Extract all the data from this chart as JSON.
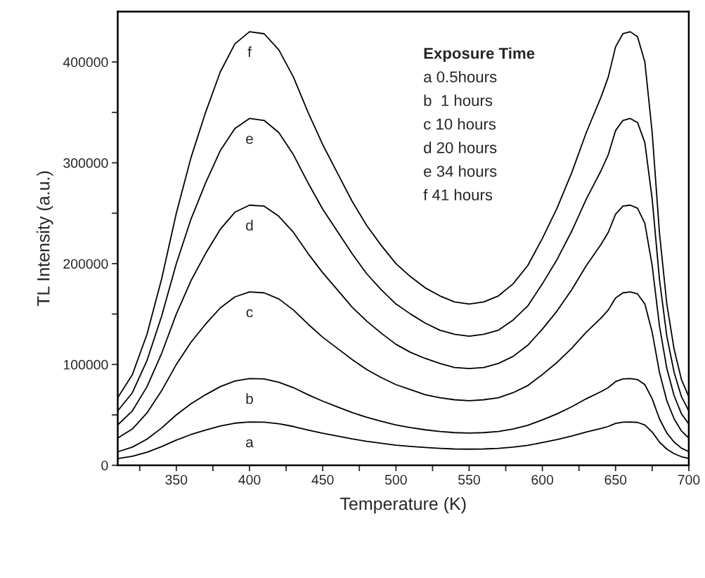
{
  "chart_data": {
    "type": "line",
    "xlabel": "Temperature (K)",
    "ylabel": "TL Intensity (a.u.)",
    "x": [
      310,
      320,
      330,
      340,
      350,
      360,
      370,
      380,
      390,
      400,
      410,
      420,
      430,
      440,
      450,
      460,
      470,
      480,
      490,
      500,
      510,
      520,
      530,
      540,
      550,
      560,
      570,
      580,
      590,
      600,
      610,
      620,
      630,
      640,
      645,
      650,
      655,
      660,
      665,
      670,
      675,
      680,
      685,
      690,
      695,
      700
    ],
    "series": [
      {
        "name": "a",
        "color": "#000000",
        "values": [
          6700,
          9000,
          13000,
          18500,
          25000,
          30500,
          35000,
          39000,
          41800,
          43000,
          42800,
          41200,
          38500,
          35000,
          31800,
          29000,
          26200,
          23800,
          21800,
          20000,
          18700,
          17600,
          16800,
          16200,
          16000,
          16200,
          16800,
          18000,
          19800,
          22500,
          25500,
          29000,
          33000,
          36500,
          38500,
          41500,
          42800,
          43000,
          42500,
          40000,
          33000,
          23000,
          16000,
          11500,
          8500,
          6800
        ]
      },
      {
        "name": "b",
        "color": "#000000",
        "values": [
          13400,
          18000,
          26000,
          37000,
          50000,
          61000,
          70000,
          78000,
          83600,
          86000,
          85600,
          82400,
          77000,
          70000,
          63600,
          58000,
          52400,
          47600,
          43600,
          40000,
          37400,
          35200,
          33600,
          32400,
          32000,
          32400,
          33600,
          36000,
          39600,
          45000,
          51000,
          58000,
          66000,
          73000,
          77000,
          83000,
          85600,
          86000,
          85000,
          80000,
          66000,
          46000,
          32000,
          23000,
          17000,
          13600
        ]
      },
      {
        "name": "c",
        "color": "#000000",
        "values": [
          27000,
          36000,
          52000,
          74000,
          100000,
          122000,
          140000,
          156000,
          167000,
          172000,
          171000,
          165000,
          154000,
          140000,
          127000,
          116000,
          105000,
          95000,
          87000,
          80000,
          75000,
          70000,
          67000,
          65000,
          64000,
          65000,
          67000,
          72000,
          79000,
          90000,
          102000,
          116000,
          132000,
          146000,
          154000,
          166000,
          171000,
          172000,
          170000,
          160000,
          132000,
          92000,
          64000,
          46000,
          34000,
          27000
        ]
      },
      {
        "name": "d",
        "color": "#000000",
        "values": [
          40000,
          54000,
          78000,
          111000,
          150000,
          183000,
          210000,
          234000,
          251000,
          258000,
          257000,
          247000,
          231000,
          210000,
          191000,
          174000,
          157000,
          143000,
          131000,
          120000,
          112000,
          106000,
          101000,
          97000,
          96000,
          97000,
          101000,
          108000,
          119000,
          135000,
          153000,
          174000,
          198000,
          219000,
          231000,
          249000,
          257000,
          258000,
          255000,
          240000,
          198000,
          138000,
          96000,
          69000,
          51000,
          41000
        ]
      },
      {
        "name": "e",
        "color": "#000000",
        "values": [
          54000,
          72000,
          104000,
          148000,
          200000,
          244000,
          280000,
          312000,
          334000,
          344000,
          342000,
          330000,
          308000,
          280000,
          254000,
          232000,
          210000,
          190000,
          174000,
          160000,
          150000,
          141000,
          134000,
          130000,
          128000,
          130000,
          134000,
          144000,
          158000,
          180000,
          204000,
          232000,
          264000,
          292000,
          308000,
          332000,
          342000,
          344000,
          340000,
          320000,
          264000,
          184000,
          128000,
          92000,
          68000,
          54000
        ]
      },
      {
        "name": "f",
        "color": "#000000",
        "values": [
          67000,
          90000,
          130000,
          185000,
          250000,
          305000,
          350000,
          390000,
          418000,
          430000,
          428000,
          412000,
          385000,
          350000,
          318000,
          290000,
          262000,
          238000,
          218000,
          200000,
          187000,
          176000,
          168000,
          162000,
          160000,
          162000,
          168000,
          180000,
          198000,
          225000,
          255000,
          290000,
          330000,
          365000,
          385000,
          415000,
          428000,
          430000,
          425000,
          400000,
          330000,
          230000,
          160000,
          115000,
          85000,
          68000
        ]
      }
    ],
    "annotations": [
      "Exposure Time",
      "a 0.5hours",
      "b  1 hours",
      "c 10 hours",
      "d 20 hours",
      "e 34 hours",
      "f 41 hours"
    ],
    "xlim": [
      310,
      700
    ],
    "xticks": [
      {
        "value": 325,
        "label": null
      },
      350,
      {
        "value": 375,
        "label": null
      },
      400,
      {
        "value": 425,
        "label": null
      },
      450,
      {
        "value": 475,
        "label": null
      },
      500,
      {
        "value": 525,
        "label": null
      },
      550,
      {
        "value": 575,
        "label": null
      },
      600,
      {
        "value": 625,
        "label": null
      },
      650,
      {
        "value": 675,
        "label": null
      },
      700
    ],
    "ylim": [
      0,
      450000
    ],
    "yticks": [
      0,
      {
        "value": 50000,
        "label": null
      },
      100000,
      {
        "value": 150000,
        "label": null
      },
      200000,
      {
        "value": 250000,
        "label": null
      },
      300000,
      {
        "value": 350000,
        "label": null
      },
      400000
    ],
    "grid": false,
    "legend": false,
    "marker": "none",
    "line_style": "solid"
  }
}
